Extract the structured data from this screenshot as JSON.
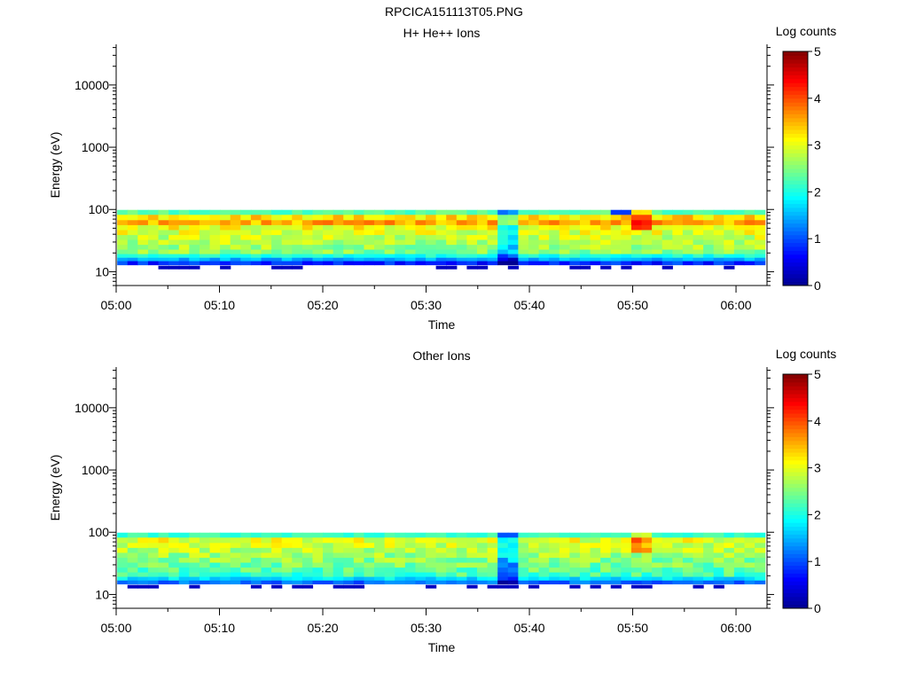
{
  "page_title": "RPCICA151113T05.PNG",
  "colormap": [
    "#00008f",
    "#0000ff",
    "#0080ff",
    "#00ffff",
    "#80ff80",
    "#ffff00",
    "#ff8000",
    "#ff0000",
    "#800000"
  ],
  "chart_data": [
    {
      "type": "heatmap",
      "title": "H+ He++ Ions",
      "xlabel": "Time",
      "ylabel": "Energy (eV)",
      "x_ticks": [
        "05:00",
        "05:10",
        "05:20",
        "05:30",
        "05:40",
        "05:50",
        "06:00"
      ],
      "x_range_minutes": [
        0,
        63
      ],
      "y_scale": "log",
      "y_range": [
        6,
        45000
      ],
      "y_ticks": [
        "10",
        "100",
        "1000",
        "10000"
      ],
      "y_tick_values": [
        10,
        100,
        1000,
        10000
      ],
      "colorbar": {
        "label": "Log counts",
        "ticks": [
          "0",
          "1",
          "2",
          "3",
          "4",
          "5"
        ],
        "range": [
          0,
          5
        ]
      },
      "data_x_start_minutes": 0.1,
      "data_x_end_minutes": 62.8,
      "column_count": 63,
      "energy_bins": [
        14,
        16,
        18,
        21,
        25,
        30,
        36,
        43,
        52,
        62,
        75,
        92
      ],
      "grid": false
    },
    {
      "type": "heatmap",
      "title": "Other Ions",
      "xlabel": "Time",
      "ylabel": "Energy (eV)",
      "x_ticks": [
        "05:00",
        "05:10",
        "05:20",
        "05:30",
        "05:40",
        "05:50",
        "06:00"
      ],
      "x_range_minutes": [
        0,
        63
      ],
      "y_scale": "log",
      "y_range": [
        6,
        45000
      ],
      "y_ticks": [
        "10",
        "100",
        "1000",
        "10000"
      ],
      "y_tick_values": [
        10,
        100,
        1000,
        10000
      ],
      "colorbar": {
        "label": "Log counts",
        "ticks": [
          "0",
          "1",
          "2",
          "3",
          "4",
          "5"
        ],
        "range": [
          0,
          5
        ]
      },
      "data_x_start_minutes": 0.1,
      "data_x_end_minutes": 62.8,
      "column_count": 63,
      "energy_bins": [
        16,
        18,
        21,
        25,
        30,
        36,
        43,
        52,
        62,
        75,
        92
      ],
      "grid": false
    }
  ]
}
